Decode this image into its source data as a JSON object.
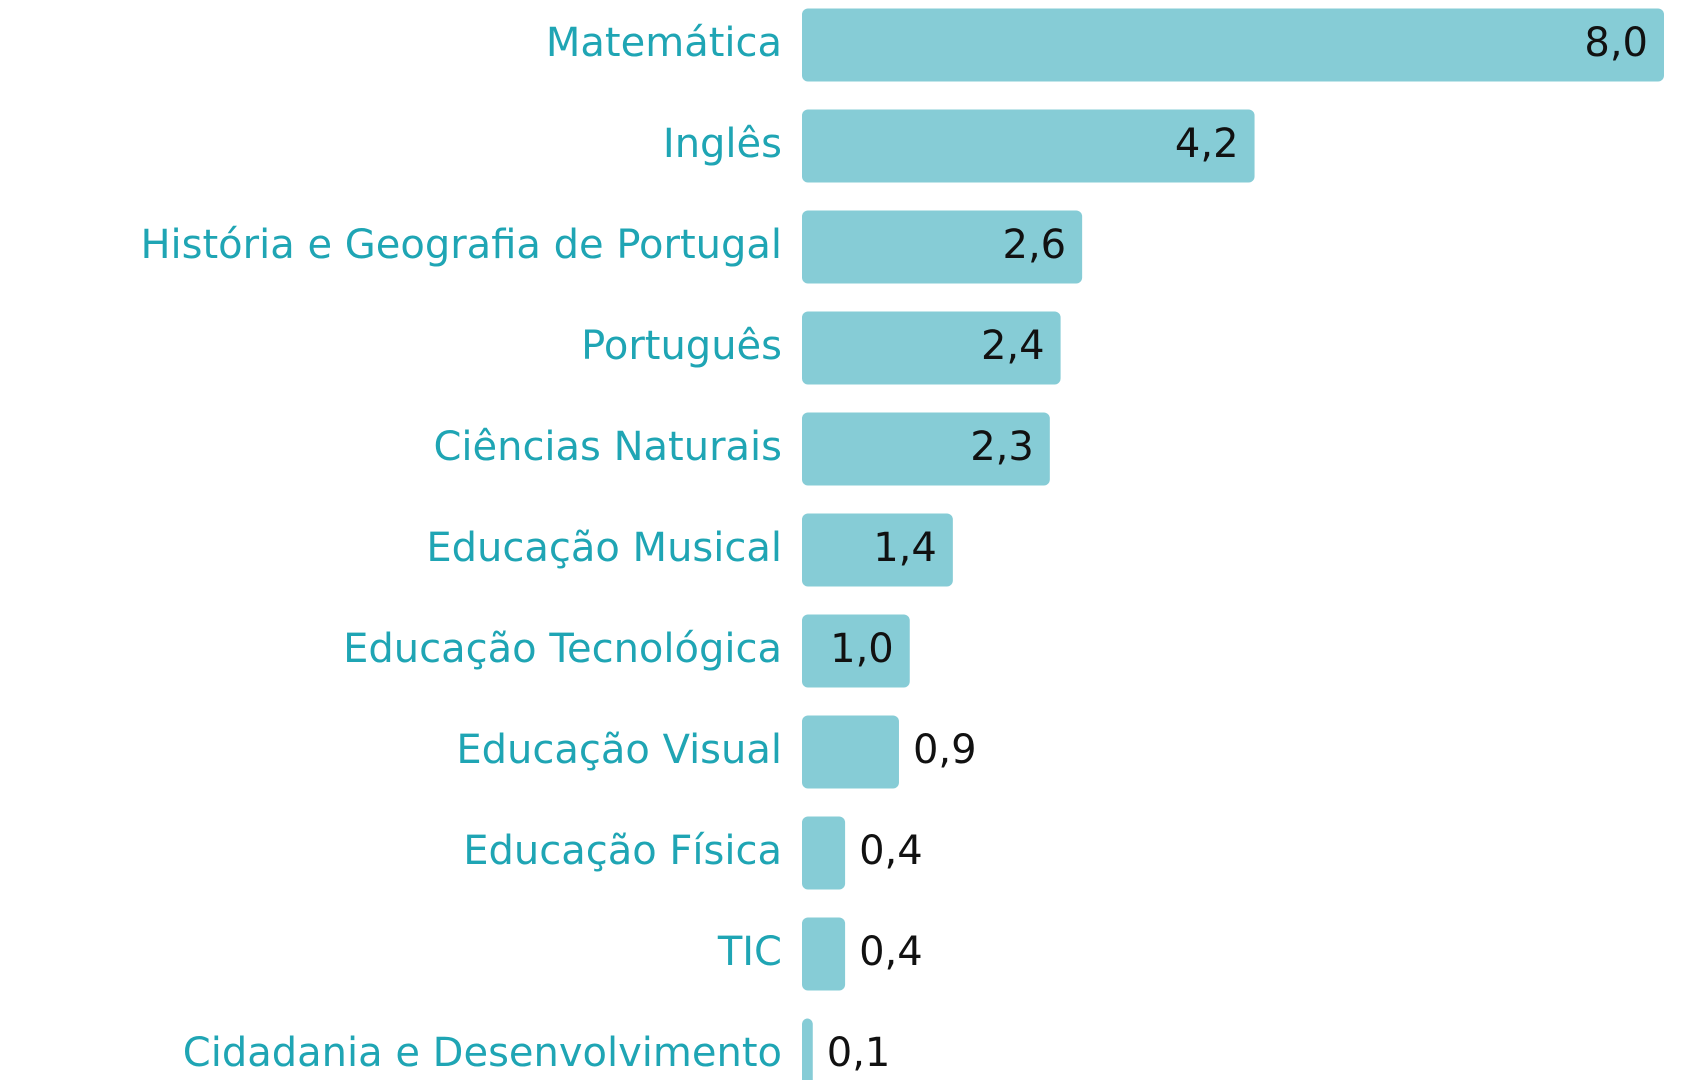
{
  "chart_data": {
    "type": "bar",
    "orientation": "horizontal",
    "categories": [
      "Matemática",
      "Inglês",
      "História e Geografia de Portugal",
      "Português",
      "Ciências Naturais",
      "Educação Musical",
      "Educação Tecnológica",
      "Educação Visual",
      "Educação Física",
      "TIC",
      "Cidadania e Desenvolvimento"
    ],
    "values": [
      8.0,
      4.2,
      2.6,
      2.4,
      2.3,
      1.4,
      1.0,
      0.9,
      0.4,
      0.4,
      0.1
    ],
    "value_labels": [
      "8,0",
      "4,2",
      "2,6",
      "2,4",
      "2,3",
      "1,4",
      "1,0",
      "0,9",
      "0,4",
      "0,4",
      "0,1"
    ],
    "color": "#86ccd6"
  }
}
